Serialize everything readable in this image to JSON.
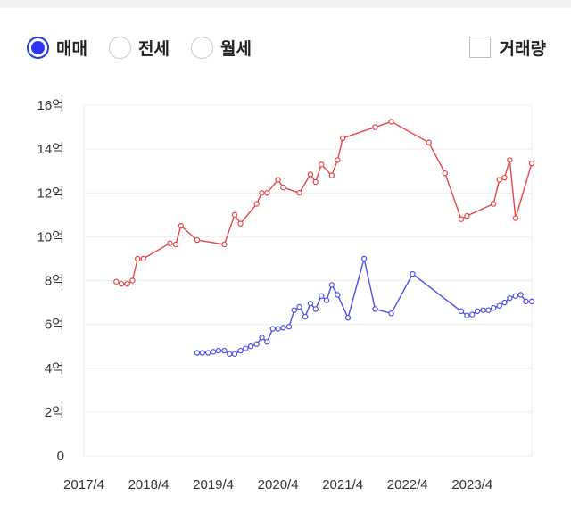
{
  "options": {
    "radios": [
      {
        "label": "매매",
        "checked": true
      },
      {
        "label": "전세",
        "checked": false
      },
      {
        "label": "월세",
        "checked": false
      }
    ],
    "checkbox": {
      "label": "거래량",
      "checked": false
    }
  },
  "colors": {
    "sale": "#e84545",
    "jeonse": "#4a52e8",
    "grid": "#ededed"
  },
  "chart_data": {
    "type": "line",
    "title": "",
    "xlabel": "",
    "ylabel": "",
    "x_range": [
      2017.25,
      2024.17
    ],
    "ylim": [
      0,
      16
    ],
    "grid": true,
    "legend": "none",
    "x_ticks": [
      {
        "x": 2017.25,
        "label": "2017/4"
      },
      {
        "x": 2018.25,
        "label": "2018/4"
      },
      {
        "x": 2019.25,
        "label": "2019/4"
      },
      {
        "x": 2020.25,
        "label": "2020/4"
      },
      {
        "x": 2021.25,
        "label": "2021/4"
      },
      {
        "x": 2022.25,
        "label": "2022/4"
      },
      {
        "x": 2023.25,
        "label": "2023/4"
      }
    ],
    "y_ticks": [
      {
        "y": 0,
        "label": "0"
      },
      {
        "y": 2,
        "label": "2억"
      },
      {
        "y": 4,
        "label": "4억"
      },
      {
        "y": 6,
        "label": "6억"
      },
      {
        "y": 8,
        "label": "8억"
      },
      {
        "y": 10,
        "label": "10억"
      },
      {
        "y": 12,
        "label": "12억"
      },
      {
        "y": 14,
        "label": "14억"
      },
      {
        "y": 16,
        "label": "16억"
      }
    ],
    "series": [
      {
        "color": "#e84545",
        "points": [
          [
            2017.75,
            7.95
          ],
          [
            2017.83,
            7.85
          ],
          [
            2017.92,
            7.85
          ],
          [
            2018.0,
            8.0
          ],
          [
            2018.08,
            9.0
          ],
          [
            2018.17,
            9.0
          ],
          [
            2018.58,
            9.7
          ],
          [
            2018.67,
            9.65
          ],
          [
            2018.75,
            10.5
          ],
          [
            2019.0,
            9.85
          ],
          [
            2019.42,
            9.65
          ],
          [
            2019.58,
            11.0
          ],
          [
            2019.67,
            10.6
          ],
          [
            2019.92,
            11.5
          ],
          [
            2020.0,
            12.0
          ],
          [
            2020.08,
            12.0
          ],
          [
            2020.25,
            12.6
          ],
          [
            2020.33,
            12.25
          ],
          [
            2020.58,
            12.0
          ],
          [
            2020.75,
            12.85
          ],
          [
            2020.83,
            12.5
          ],
          [
            2020.92,
            13.3
          ],
          [
            2021.08,
            12.8
          ],
          [
            2021.17,
            13.5
          ],
          [
            2021.25,
            14.5
          ],
          [
            2021.75,
            15.0
          ],
          [
            2022.0,
            15.25
          ],
          [
            2022.58,
            14.3
          ],
          [
            2022.83,
            12.9
          ],
          [
            2023.08,
            10.8
          ],
          [
            2023.17,
            10.95
          ],
          [
            2023.58,
            11.5
          ],
          [
            2023.67,
            12.6
          ],
          [
            2023.75,
            12.7
          ],
          [
            2023.83,
            13.5
          ],
          [
            2023.92,
            10.85
          ],
          [
            2024.17,
            13.35
          ]
        ]
      },
      {
        "color": "#4a52e8",
        "points": [
          [
            2019.0,
            4.7
          ],
          [
            2019.08,
            4.7
          ],
          [
            2019.17,
            4.7
          ],
          [
            2019.25,
            4.75
          ],
          [
            2019.33,
            4.8
          ],
          [
            2019.42,
            4.8
          ],
          [
            2019.5,
            4.65
          ],
          [
            2019.58,
            4.65
          ],
          [
            2019.67,
            4.8
          ],
          [
            2019.75,
            4.9
          ],
          [
            2019.83,
            5.0
          ],
          [
            2019.92,
            5.1
          ],
          [
            2020.0,
            5.4
          ],
          [
            2020.08,
            5.2
          ],
          [
            2020.17,
            5.8
          ],
          [
            2020.25,
            5.8
          ],
          [
            2020.33,
            5.85
          ],
          [
            2020.42,
            5.9
          ],
          [
            2020.5,
            6.65
          ],
          [
            2020.58,
            6.8
          ],
          [
            2020.67,
            6.35
          ],
          [
            2020.75,
            6.95
          ],
          [
            2020.83,
            6.7
          ],
          [
            2020.92,
            7.3
          ],
          [
            2021.0,
            7.1
          ],
          [
            2021.08,
            7.8
          ],
          [
            2021.17,
            7.35
          ],
          [
            2021.33,
            6.3
          ],
          [
            2021.58,
            9.0
          ],
          [
            2021.75,
            6.7
          ],
          [
            2022.0,
            6.5
          ],
          [
            2022.33,
            8.3
          ],
          [
            2023.08,
            6.6
          ],
          [
            2023.17,
            6.4
          ],
          [
            2023.25,
            6.45
          ],
          [
            2023.33,
            6.6
          ],
          [
            2023.42,
            6.65
          ],
          [
            2023.5,
            6.65
          ],
          [
            2023.58,
            6.75
          ],
          [
            2023.67,
            6.85
          ],
          [
            2023.75,
            7.0
          ],
          [
            2023.83,
            7.2
          ],
          [
            2023.92,
            7.3
          ],
          [
            2024.0,
            7.35
          ],
          [
            2024.08,
            7.05
          ],
          [
            2024.17,
            7.05
          ]
        ]
      }
    ]
  }
}
